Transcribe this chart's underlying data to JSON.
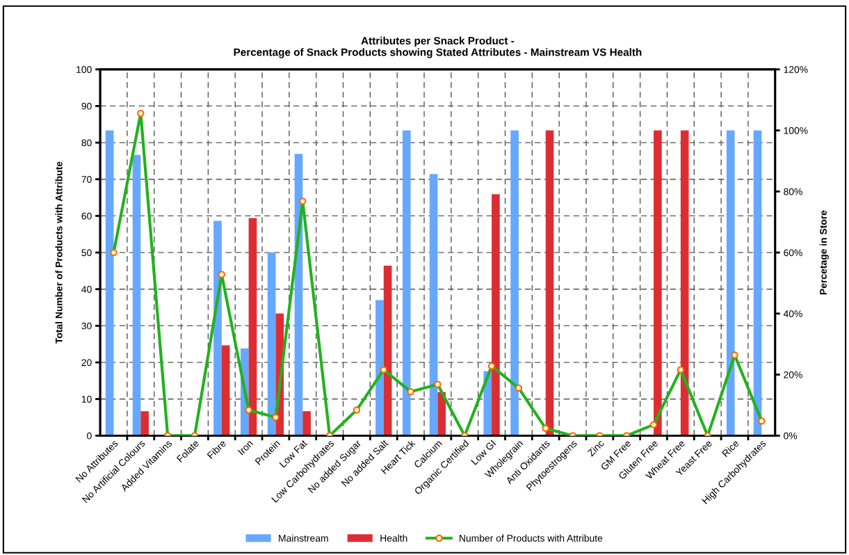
{
  "chart_data": {
    "type": "bar",
    "title": "Attributes per Snack Product -\nPercentage of Snack Products showing Stated Attributes - Mainstream VS Health",
    "ylabel": "Total Number of Products with Attribute",
    "y2label": "Percetage in Store",
    "categories": [
      "No Attributes",
      "No Artificial Colours",
      "Added Vitamins",
      "Folate",
      "Fibre",
      "Iron",
      "Protein",
      "Low Fat",
      "Low Carbohydrates",
      "No added Sugar",
      "No added Salt",
      "Heart Tick",
      "Calcium",
      "Organic Certified",
      "Low GI",
      "Wholegrain",
      "Anti Oxidants",
      "Phytoestrogens",
      "Zinc",
      "GM Free",
      "Gluten Free",
      "Wheat Free",
      "Yeast Free",
      "Rice",
      "High Carbohydrates"
    ],
    "series": [
      {
        "name": "Mainstream",
        "color": "#66a8ff",
        "axis": "y2",
        "values": [
          100,
          92,
          0,
          0,
          70.4,
          28.6,
          60,
          92.3,
          0,
          0,
          44.4,
          100,
          85.7,
          0,
          21.1,
          100,
          0,
          0,
          0,
          0,
          0,
          0,
          0,
          100,
          100
        ]
      },
      {
        "name": "Health",
        "color": "#dc2e32",
        "axis": "y2",
        "values": [
          0,
          8,
          0,
          0,
          29.6,
          71.3,
          40,
          8,
          0,
          0,
          55.7,
          0,
          14.3,
          0,
          79.1,
          0,
          100,
          0,
          0,
          0,
          100,
          100,
          0,
          0,
          0
        ]
      },
      {
        "name": "Number of Products with Attribute",
        "type": "line",
        "color": "#22b21e",
        "marker": "circle",
        "values": [
          50,
          88,
          0,
          0,
          44,
          7,
          5,
          64,
          0,
          7,
          18,
          12,
          14,
          0,
          19,
          13,
          2,
          0,
          0,
          0,
          3,
          18,
          0,
          22,
          4
        ]
      }
    ],
    "ylim": [
      0,
      100
    ],
    "yticks": [
      0,
      10,
      20,
      30,
      40,
      50,
      60,
      70,
      80,
      90,
      100
    ],
    "y2lim": [
      0,
      120
    ],
    "y2ticks": [
      {
        "value": 0,
        "label": "0%"
      },
      {
        "value": 20,
        "label": "20%"
      },
      {
        "value": 40,
        "label": "40%"
      },
      {
        "value": 60,
        "label": "60%"
      },
      {
        "value": 80,
        "label": "80%"
      },
      {
        "value": 100,
        "label": "100%"
      },
      {
        "value": 120,
        "label": "120%"
      }
    ],
    "grid": true,
    "legend": "bottom"
  }
}
